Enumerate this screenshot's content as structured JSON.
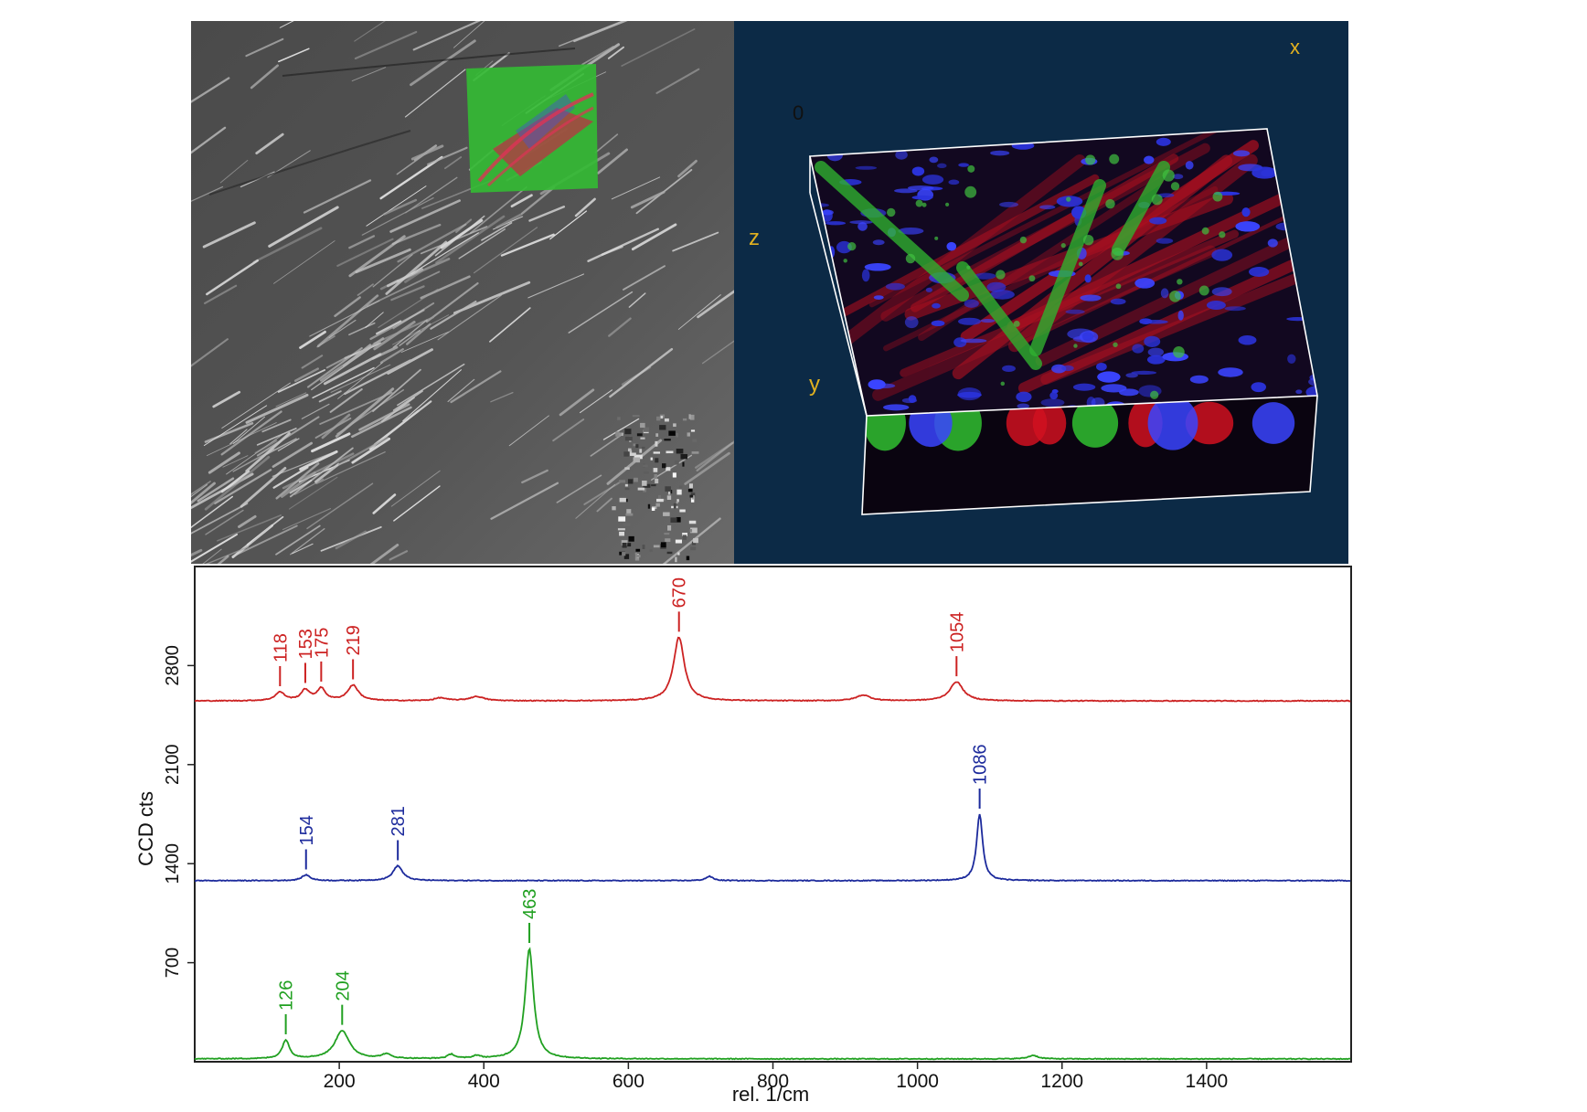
{
  "sem_image": {
    "description_icon": "sem-micrograph-icon"
  },
  "confocal_image": {
    "axis_labels": {
      "x": "x",
      "y": "y",
      "z": "z",
      "origin": "0"
    },
    "colors": {
      "background": "#0c2a46",
      "axis_text": "#e0b020",
      "box": "#ffffff"
    }
  },
  "chart_data": {
    "type": "line",
    "xlabel": "rel. 1/cm",
    "ylabel": "CCD cts",
    "xlim": [
      0,
      1600
    ],
    "ylim": [
      0,
      3500
    ],
    "x_ticks": [
      200,
      400,
      600,
      800,
      1000,
      1200,
      1400
    ],
    "y_ticks": [
      700,
      1400,
      2100,
      2800
    ],
    "grid": false,
    "series": [
      {
        "color": "#cc2222",
        "baseline": 2550,
        "peaks": [
          {
            "x": 118,
            "height": 60,
            "width": 8,
            "label": "118"
          },
          {
            "x": 153,
            "height": 75,
            "width": 7,
            "label": "153"
          },
          {
            "x": 175,
            "height": 85,
            "width": 7,
            "label": "175"
          },
          {
            "x": 219,
            "height": 110,
            "width": 9,
            "label": "219"
          },
          {
            "x": 340,
            "height": 20,
            "width": 10
          },
          {
            "x": 390,
            "height": 30,
            "width": 12
          },
          {
            "x": 670,
            "height": 450,
            "width": 9,
            "label": "670"
          },
          {
            "x": 925,
            "height": 40,
            "width": 12
          },
          {
            "x": 1054,
            "height": 135,
            "width": 11,
            "label": "1054"
          }
        ]
      },
      {
        "color": "#1c2a9c",
        "baseline": 1280,
        "peaks": [
          {
            "x": 154,
            "height": 40,
            "width": 7,
            "label": "154"
          },
          {
            "x": 281,
            "height": 105,
            "width": 8,
            "label": "281"
          },
          {
            "x": 712,
            "height": 30,
            "width": 6
          },
          {
            "x": 1086,
            "height": 470,
            "width": 5,
            "label": "1086"
          }
        ]
      },
      {
        "color": "#20a020",
        "baseline": 20,
        "peaks": [
          {
            "x": 126,
            "height": 130,
            "width": 6,
            "label": "126"
          },
          {
            "x": 204,
            "height": 200,
            "width": 12,
            "label": "204"
          },
          {
            "x": 265,
            "height": 30,
            "width": 8
          },
          {
            "x": 355,
            "height": 30,
            "width": 6
          },
          {
            "x": 390,
            "height": 20,
            "width": 6
          },
          {
            "x": 463,
            "height": 780,
            "width": 7,
            "label": "463"
          },
          {
            "x": 1160,
            "height": 25,
            "width": 8
          }
        ]
      }
    ]
  }
}
